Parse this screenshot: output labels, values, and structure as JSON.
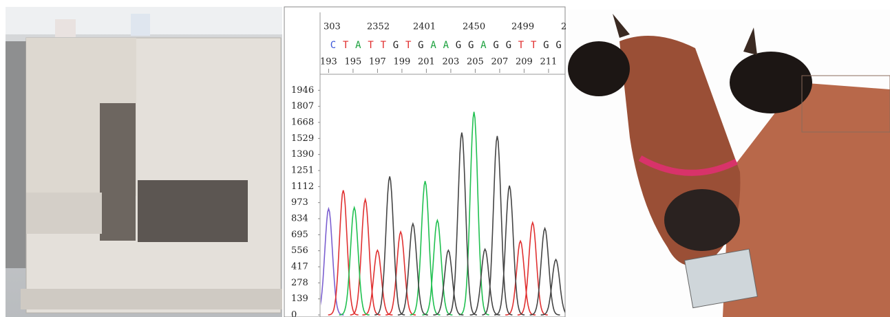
{
  "chromatogram": {
    "type": "line",
    "scan_labels": [
      "303",
      "2352",
      "2401",
      "2450",
      "2499",
      "2"
    ],
    "bases": [
      "C",
      "T",
      "A",
      "T",
      "T",
      "G",
      "T",
      "G",
      "A",
      "A",
      "G",
      "G",
      "A",
      "G",
      "G",
      "T",
      "T",
      "G",
      "G"
    ],
    "base_colors": {
      "A": "#1aa03c",
      "C": "#3a55d8",
      "G": "#222222",
      "T": "#e02a2a"
    },
    "xticks": [
      193,
      195,
      197,
      199,
      201,
      203,
      205,
      207,
      209,
      211,
      {
        "value": 213,
        "label": "2"
      }
    ],
    "xlim": [
      192.3,
      212.3
    ],
    "ylim": [
      0,
      2085
    ],
    "yticks": [
      0,
      139,
      278,
      417,
      556,
      695,
      834,
      973,
      1112,
      1251,
      1390,
      1529,
      1668,
      1807,
      1946
    ],
    "series": [
      {
        "color": "#7b5fd0",
        "x": [
          193.0
        ],
        "values": [
          920
        ]
      },
      {
        "color": "#e03030",
        "x": [
          194.2,
          196.0,
          197.0,
          198.9,
          208.7,
          209.7
        ],
        "values": [
          1080,
          1000,
          560,
          720,
          640,
          800
        ]
      },
      {
        "color": "#20c050",
        "x": [
          195.1,
          200.9,
          201.9,
          204.9
        ],
        "values": [
          930,
          1160,
          820,
          1760
        ]
      },
      {
        "color": "#444444",
        "x": [
          198.0,
          199.9,
          202.8,
          203.9,
          205.8,
          206.8,
          207.8,
          210.7,
          211.6
        ],
        "values": [
          1200,
          790,
          560,
          1580,
          570,
          1550,
          1120,
          750,
          480
        ]
      }
    ]
  }
}
